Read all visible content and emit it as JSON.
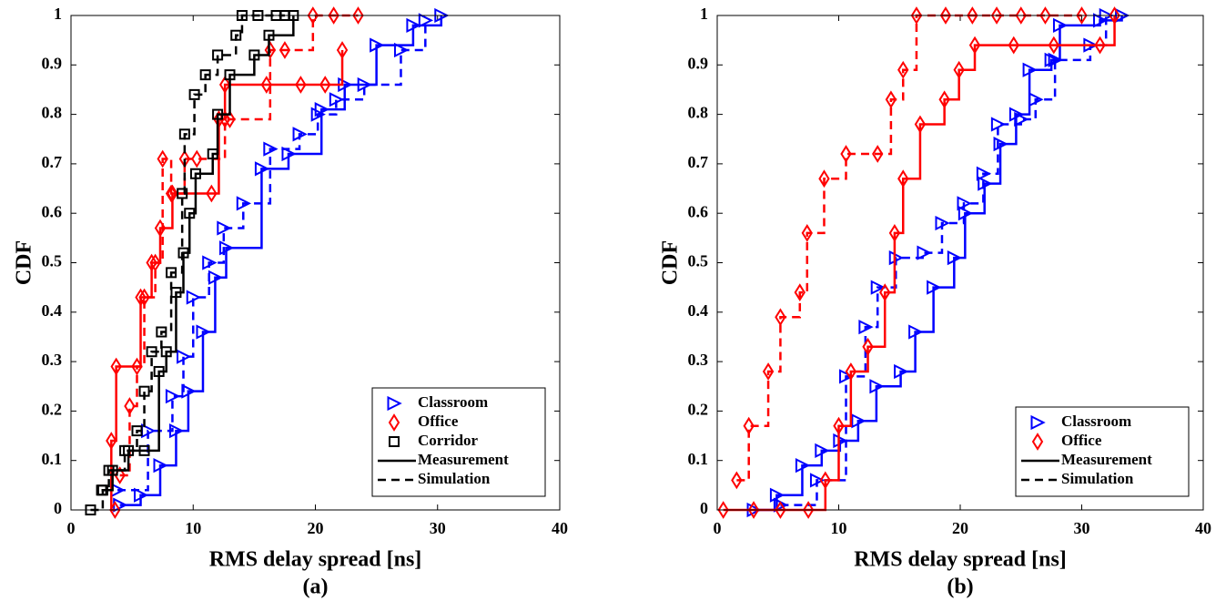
{
  "chart_data": [
    {
      "type": "line",
      "step": true,
      "caption": "(a)",
      "xlabel": "RMS delay spread [ns]",
      "ylabel": "CDF",
      "xlim": [
        0,
        40
      ],
      "ylim": [
        0,
        1
      ],
      "xticks": [
        0,
        10,
        20,
        30,
        40
      ],
      "yticks": [
        0,
        0.1,
        0.2,
        0.3,
        0.4,
        0.5,
        0.6,
        0.7,
        0.8,
        0.9,
        1
      ],
      "legend": "lower right",
      "line_styles": [
        {
          "name": "Measurement",
          "dash": "solid"
        },
        {
          "name": "Simulation",
          "dash": "dashed"
        }
      ],
      "series": [
        {
          "name": "Classroom",
          "color": "#0000ff",
          "marker": "triangle-right",
          "measurement": {
            "x": [
              4,
              5.7,
              7.3,
              8.6,
              9.6,
              10.8,
              11.8,
              12.7,
              15.6,
              17.8,
              20.5,
              22.4,
              25,
              28,
              30.3
            ],
            "values": [
              0.01,
              0.03,
              0.09,
              0.16,
              0.24,
              0.36,
              0.47,
              0.53,
              0.69,
              0.72,
              0.81,
              0.86,
              0.94,
              0.98,
              1
            ]
          },
          "simulation": {
            "x": [
              3.8,
              6.3,
              8.3,
              9.2,
              10,
              11.3,
              12.5,
              14.1,
              16.3,
              18.7,
              20.2,
              21.7,
              24,
              27,
              29
            ],
            "values": [
              0.04,
              0.16,
              0.23,
              0.31,
              0.43,
              0.5,
              0.57,
              0.62,
              0.73,
              0.76,
              0.8,
              0.83,
              0.86,
              0.93,
              0.99
            ]
          }
        },
        {
          "name": "Office",
          "color": "#ff0000",
          "marker": "diamond",
          "measurement": {
            "x": [
              3.6,
              3.3,
              3.7,
              5.7,
              6.6,
              7.3,
              8.3,
              11.5,
              12.1,
              12.6,
              16,
              18.8,
              20.8,
              22.2
            ],
            "values": [
              0,
              0.14,
              0.29,
              0.43,
              0.5,
              0.57,
              0.64,
              0.64,
              0.79,
              0.86,
              0.86,
              0.86,
              0.86,
              0.93
            ]
          },
          "simulation": {
            "x": [
              4,
              4.8,
              5.4,
              6,
              6.9,
              7.5,
              8.2,
              9.3,
              10.3,
              12.6,
              13,
              16.3,
              17.5,
              19.8,
              21.5,
              23.5
            ],
            "values": [
              0.07,
              0.21,
              0.29,
              0.43,
              0.5,
              0.71,
              0.64,
              0.71,
              0.71,
              0.79,
              0.79,
              0.93,
              0.93,
              1,
              1,
              1
            ]
          }
        },
        {
          "name": "Corridor",
          "color": "#000000",
          "marker": "square",
          "measurement": {
            "x": [
              2.5,
              3.4,
              4.7,
              6,
              7.2,
              7.8,
              8.6,
              9.2,
              9.7,
              10.2,
              11.6,
              12,
              13,
              15,
              16.2,
              18.2
            ],
            "values": [
              0.04,
              0.08,
              0.12,
              0.12,
              0.28,
              0.32,
              0.44,
              0.52,
              0.6,
              0.68,
              0.72,
              0.8,
              0.88,
              0.92,
              0.96,
              1
            ]
          },
          "simulation": {
            "x": [
              1.6,
              2.6,
              3.1,
              4.4,
              5.4,
              6,
              6.6,
              7.4,
              8.2,
              9.1,
              9.3,
              10.1,
              11,
              12,
              13.5,
              14,
              15.3,
              16.8,
              17.5
            ],
            "values": [
              0,
              0.04,
              0.08,
              0.12,
              0.16,
              0.24,
              0.32,
              0.36,
              0.48,
              0.64,
              0.76,
              0.84,
              0.88,
              0.92,
              0.96,
              1,
              1,
              1,
              1
            ]
          }
        }
      ]
    },
    {
      "type": "line",
      "step": true,
      "caption": "(b)",
      "xlabel": "RMS delay spread [ns]",
      "ylabel": "CDF",
      "xlim": [
        0,
        40
      ],
      "ylim": [
        0,
        1
      ],
      "xticks": [
        0,
        10,
        20,
        30,
        40
      ],
      "yticks": [
        0,
        0.1,
        0.2,
        0.3,
        0.4,
        0.5,
        0.6,
        0.7,
        0.8,
        0.9,
        1
      ],
      "legend": "lower right",
      "line_styles": [
        {
          "name": "Measurement",
          "dash": "solid"
        },
        {
          "name": "Simulation",
          "dash": "dashed"
        }
      ],
      "series": [
        {
          "name": "Classroom",
          "color": "#0000ff",
          "marker": "triangle-right",
          "measurement": {
            "x": [
              3,
              4.9,
              7,
              8.6,
              10.1,
              11.6,
              13.1,
              15.1,
              16.3,
              17.8,
              19.5,
              20.4,
              22,
              23.3,
              24.6,
              25.7,
              27.5,
              28.2,
              31.5,
              33.3
            ],
            "values": [
              0,
              0.03,
              0.09,
              0.12,
              0.14,
              0.18,
              0.25,
              0.28,
              0.36,
              0.45,
              0.51,
              0.6,
              0.66,
              0.74,
              0.8,
              0.89,
              0.91,
              0.98,
              0.99,
              1
            ]
          },
          "simulation": {
            "x": [
              5.2,
              8.2,
              10.6,
              12.2,
              13.2,
              14.7,
              17,
              18.5,
              20.3,
              21.9,
              23.1,
              25,
              26.2,
              27.8,
              30.7,
              32
            ],
            "values": [
              0.01,
              0.06,
              0.27,
              0.37,
              0.45,
              0.51,
              0.52,
              0.58,
              0.62,
              0.68,
              0.78,
              0.79,
              0.83,
              0.91,
              0.94,
              1
            ]
          }
        },
        {
          "name": "Office",
          "color": "#ff0000",
          "marker": "diamond",
          "measurement": {
            "x": [
              0.5,
              3,
              5.2,
              7.5,
              8.9,
              10,
              11,
              12.4,
              13.8,
              14.6,
              15.3,
              16.7,
              18.7,
              19.9,
              21.2,
              24.4,
              27.7,
              31.5,
              32.7
            ],
            "values": [
              0,
              0,
              0,
              0,
              0.06,
              0.17,
              0.28,
              0.33,
              0.44,
              0.56,
              0.67,
              0.78,
              0.83,
              0.89,
              0.94,
              0.94,
              0.94,
              0.94,
              1
            ]
          },
          "simulation": {
            "x": [
              1.6,
              2.6,
              4.2,
              5.2,
              6.8,
              7.4,
              8.8,
              10.6,
              13.2,
              14.3,
              15.3,
              16.4,
              18.8,
              21,
              23,
              25,
              27,
              30
            ],
            "values": [
              0.06,
              0.17,
              0.28,
              0.39,
              0.44,
              0.56,
              0.67,
              0.72,
              0.72,
              0.83,
              0.89,
              1,
              1,
              1,
              1,
              1,
              1,
              1
            ]
          }
        }
      ]
    }
  ]
}
